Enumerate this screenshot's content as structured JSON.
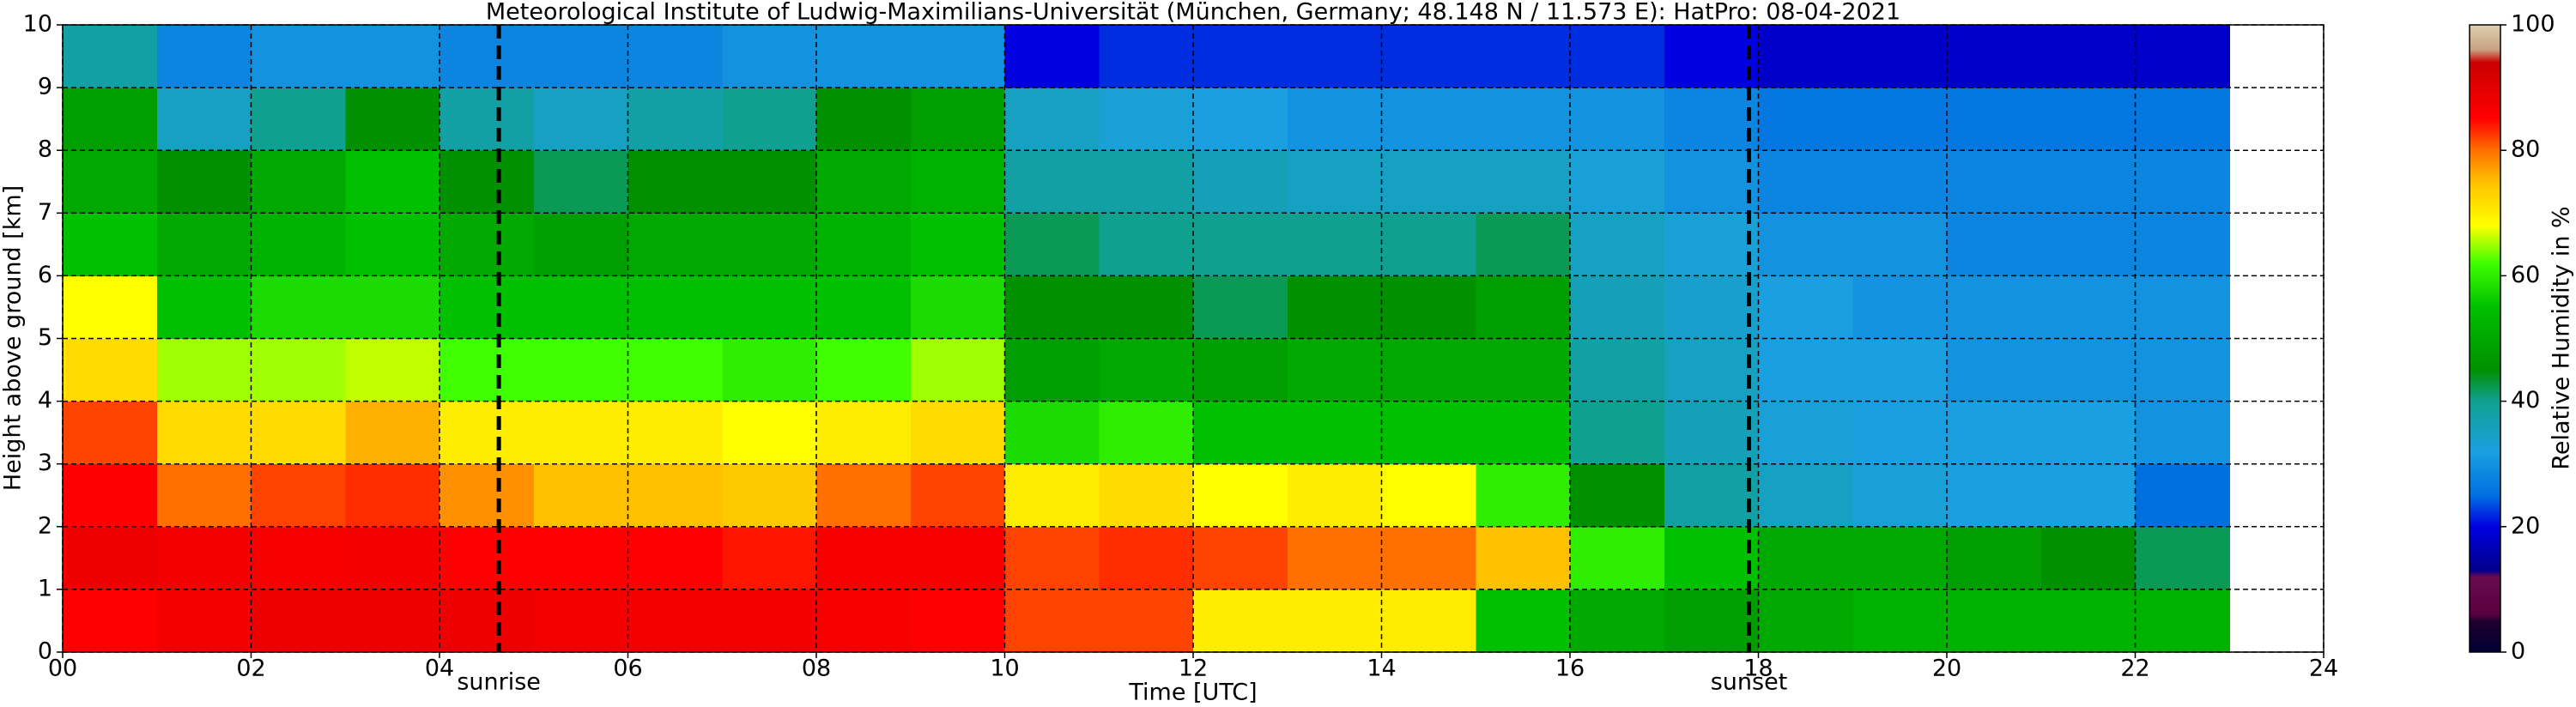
{
  "chart_data": {
    "type": "heatmap",
    "title": "Meteorological Institute of Ludwig-Maximilians-Universität (München, Germany; 48.148 N / 11.573 E):    HatPro: 08-04-2021",
    "x_label": "Time [UTC]",
    "y_label": "Height above ground [km]",
    "colorbar_label": "Relative Humidity in %",
    "x": [
      0,
      1,
      2,
      3,
      4,
      5,
      6,
      7,
      8,
      9,
      10,
      11,
      12,
      13,
      14,
      15,
      16,
      17,
      18,
      19,
      20,
      21,
      22,
      23
    ],
    "y": [
      0,
      1,
      2,
      3,
      4,
      5,
      6,
      7,
      8,
      9,
      10
    ],
    "values": [
      [
        85,
        87,
        88,
        88,
        88,
        87,
        87,
        87,
        86,
        85,
        82,
        82,
        70,
        70,
        70,
        55,
        50,
        48,
        50,
        52,
        52,
        52,
        52
      ],
      [
        88,
        87,
        86,
        87,
        85,
        85,
        85,
        84,
        86,
        86,
        82,
        83,
        82,
        80,
        80,
        75,
        60,
        55,
        50,
        50,
        48,
        45,
        42
      ],
      [
        85,
        80,
        82,
        83,
        78,
        75,
        75,
        74,
        80,
        82,
        70,
        72,
        68,
        70,
        68,
        60,
        45,
        38,
        35,
        33,
        32,
        32,
        25
      ],
      [
        82,
        72,
        72,
        76,
        70,
        70,
        70,
        68,
        70,
        72,
        58,
        60,
        55,
        55,
        55,
        55,
        40,
        36,
        33,
        32,
        32,
        32,
        30
      ],
      [
        72,
        65,
        65,
        66,
        62,
        62,
        62,
        60,
        62,
        65,
        48,
        50,
        48,
        50,
        50,
        50,
        38,
        35,
        32,
        32,
        30,
        30,
        30
      ],
      [
        68,
        55,
        58,
        58,
        55,
        55,
        55,
        55,
        55,
        58,
        45,
        45,
        42,
        45,
        45,
        48,
        36,
        34,
        32,
        30,
        30,
        30,
        30
      ],
      [
        55,
        50,
        52,
        55,
        50,
        48,
        50,
        50,
        52,
        55,
        42,
        40,
        40,
        40,
        40,
        42,
        35,
        33,
        30,
        30,
        28,
        28,
        28
      ],
      [
        50,
        45,
        50,
        55,
        45,
        42,
        45,
        45,
        50,
        52,
        38,
        38,
        36,
        35,
        35,
        35,
        33,
        30,
        28,
        28,
        28,
        28,
        28
      ],
      [
        48,
        35,
        40,
        45,
        38,
        35,
        38,
        40,
        45,
        48,
        35,
        33,
        32,
        30,
        30,
        30,
        30,
        28,
        26,
        26,
        26,
        26,
        26
      ],
      [
        38,
        28,
        30,
        30,
        28,
        28,
        28,
        30,
        30,
        30,
        20,
        22,
        22,
        22,
        22,
        22,
        22,
        20,
        18,
        18,
        18,
        18,
        18
      ]
    ],
    "xlim": [
      0,
      24
    ],
    "ylim": [
      0,
      10
    ],
    "xticks": [
      {
        "value": 0,
        "label": "00"
      },
      {
        "value": 2,
        "label": "02"
      },
      {
        "value": 4,
        "label": "04"
      },
      {
        "value": 6,
        "label": "06"
      },
      {
        "value": 8,
        "label": "08"
      },
      {
        "value": 10,
        "label": "10"
      },
      {
        "value": 12,
        "label": "12"
      },
      {
        "value": 14,
        "label": "14"
      },
      {
        "value": 16,
        "label": "16"
      },
      {
        "value": 18,
        "label": "18"
      },
      {
        "value": 20,
        "label": "20"
      },
      {
        "value": 22,
        "label": "22"
      },
      {
        "value": 24,
        "label": "24"
      }
    ],
    "yticks": [
      0,
      1,
      2,
      3,
      4,
      5,
      6,
      7,
      8,
      9,
      10
    ],
    "grid": true,
    "vlines": [
      {
        "x": 4.63,
        "label": "sunrise"
      },
      {
        "x": 17.9,
        "label": "sunset"
      }
    ],
    "clim": [
      0,
      100
    ],
    "cticks": [
      0,
      20,
      40,
      60,
      80,
      100
    ],
    "colormap": [
      [
        0,
        "#000033"
      ],
      [
        5,
        "#200030"
      ],
      [
        6,
        "#5a0040"
      ],
      [
        12,
        "#6a0a50"
      ],
      [
        13,
        "#00008b"
      ],
      [
        20,
        "#0000e0"
      ],
      [
        25,
        "#0070e0"
      ],
      [
        32,
        "#1aa0e0"
      ],
      [
        40,
        "#10a090"
      ],
      [
        45,
        "#009000"
      ],
      [
        55,
        "#00c000"
      ],
      [
        62,
        "#40ff00"
      ],
      [
        68,
        "#ffff00"
      ],
      [
        75,
        "#ffc000"
      ],
      [
        80,
        "#ff7000"
      ],
      [
        85,
        "#ff0000"
      ],
      [
        94,
        "#cc0000"
      ],
      [
        96,
        "#c8a080"
      ],
      [
        100,
        "#e0d0b0"
      ]
    ]
  }
}
